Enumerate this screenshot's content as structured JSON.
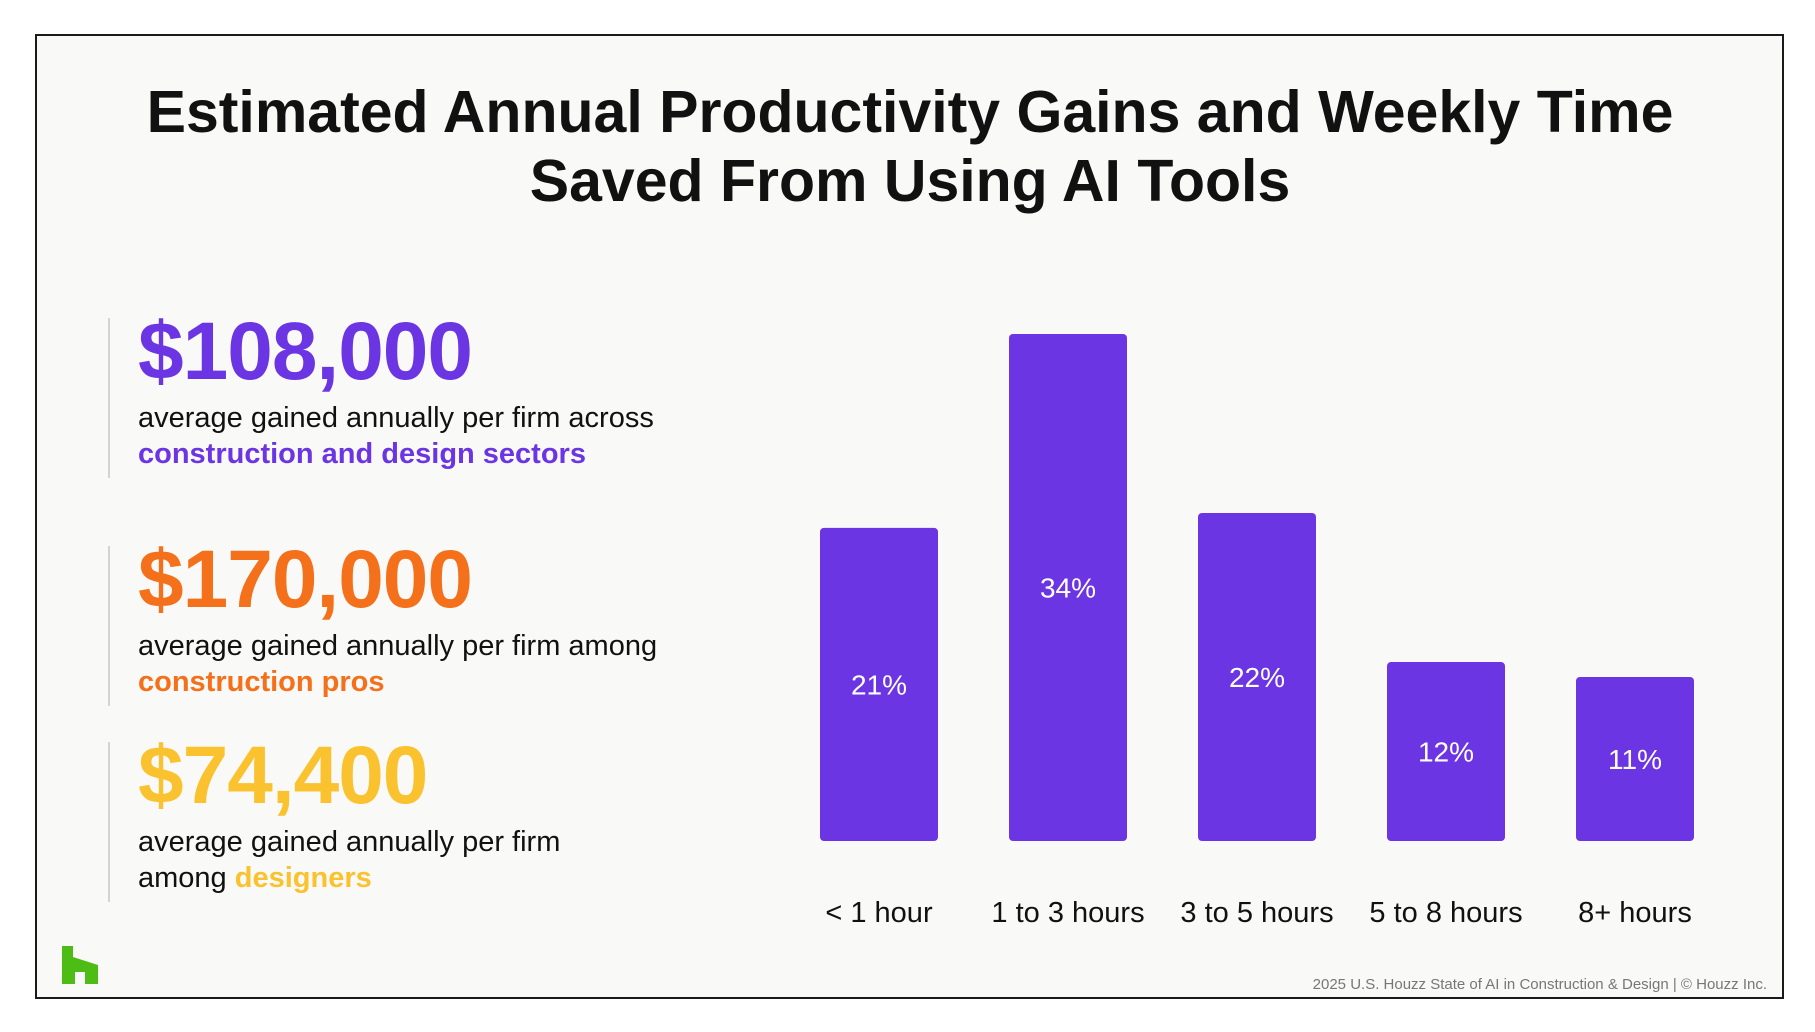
{
  "title_line1": "Estimated Annual Productivity Gains and Weekly Time",
  "title_line2": "Saved From Using AI Tools",
  "stats": [
    {
      "value": "$108,000",
      "desc_line1": "average gained annually per firm across",
      "desc_highlight": "construction and design sectors",
      "color": "#6b35e3"
    },
    {
      "value": "$170,000",
      "desc_line1": "average gained annually per firm among",
      "desc_highlight": "construction pros",
      "color": "#f4701a"
    },
    {
      "value": "$74,400",
      "desc_line1": "average gained annually per firm",
      "desc_prefix": "among",
      "desc_highlight": "designers",
      "color": "#f9c22e"
    }
  ],
  "chart_data": {
    "type": "bar",
    "categories": [
      "< 1 hour",
      "1 to 3 hours",
      "3 to 5 hours",
      "5 to 8 hours",
      "8+ hours"
    ],
    "values": [
      21,
      34,
      22,
      12,
      11
    ],
    "data_labels": [
      "21%",
      "34%",
      "22%",
      "12%",
      "11%"
    ],
    "unit": "%",
    "ylim": [
      0,
      34
    ],
    "grid": false,
    "legend": "none",
    "bar_color": "#6b35e3"
  },
  "logo_icon": "houzz-logo-icon",
  "logo_color": "#4dbc15",
  "footer": "2025 U.S. Houzz State of AI in Construction & Design | © Houzz Inc."
}
